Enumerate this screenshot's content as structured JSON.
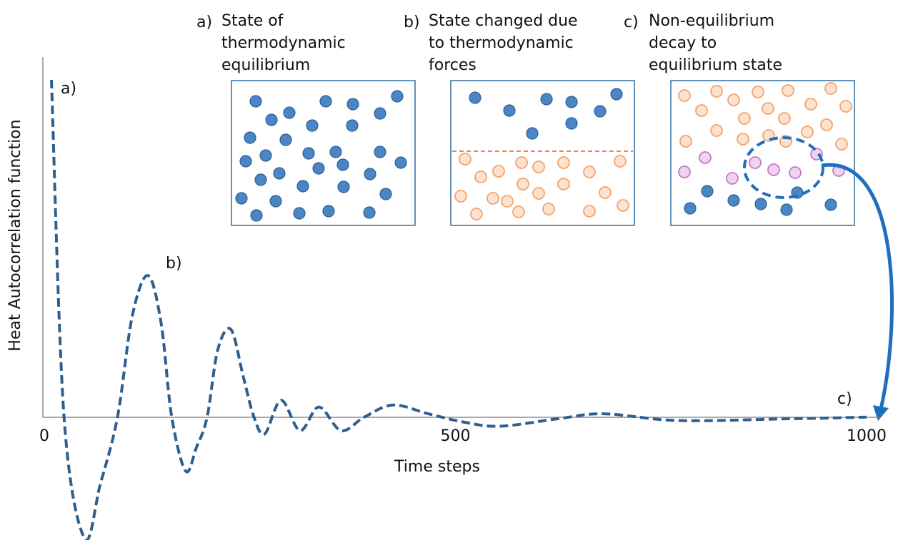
{
  "chart_data": {
    "type": "line",
    "y_label": "Heat Autocorrelation function",
    "x_label": "Time steps",
    "color": "#2e5f8f",
    "x": [
      8.7,
      24,
      49,
      68,
      89,
      107,
      126,
      142,
      155,
      172,
      185,
      198,
      211,
      227,
      242,
      255,
      268,
      288,
      311,
      334,
      361,
      389,
      424,
      467,
      511,
      554,
      624,
      680,
      771,
      902,
      1000
    ],
    "values": [
      1.0,
      0,
      -0.36,
      -0.2,
      0,
      0.3,
      0.42,
      0.28,
      0,
      -0.16,
      -0.09,
      0,
      0.2,
      0.26,
      0.12,
      0,
      -0.05,
      0.05,
      -0.04,
      0.03,
      -0.04,
      0,
      0.036,
      0.01,
      -0.015,
      -0.027,
      -0.005,
      0.01,
      -0.01,
      -0.005,
      0
    ],
    "xlim": [
      0,
      1000
    ],
    "ylim": [
      -0.36,
      1.0
    ],
    "xticks": [
      0,
      500,
      1000
    ],
    "annotations": [
      "a)",
      "b)",
      "c)"
    ],
    "panels": [
      {
        "label": "a)",
        "title": [
          "State of",
          "thermodynamic",
          "equilibrium"
        ]
      },
      {
        "label": "b)",
        "title": [
          "State changed due",
          "to thermodynamic",
          "forces"
        ]
      },
      {
        "label": "c)",
        "title": [
          "Non-equilibrium",
          "decay to",
          "equilibrium state"
        ]
      }
    ]
  }
}
